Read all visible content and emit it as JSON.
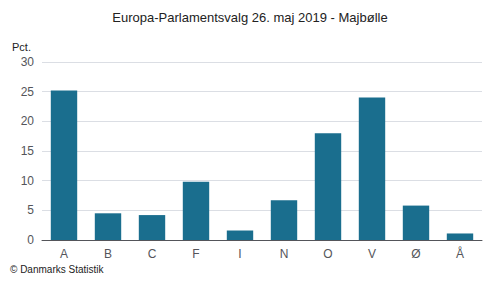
{
  "chart_data": {
    "type": "bar",
    "title": "Europa-Parlamentsvalg 26. maj 2019 - Majbølle",
    "categories": [
      "A",
      "B",
      "C",
      "F",
      "I",
      "N",
      "O",
      "V",
      "Ø",
      "Å"
    ],
    "values": [
      25.2,
      4.5,
      4.2,
      9.8,
      1.6,
      6.7,
      18.0,
      24.0,
      5.8,
      1.1
    ],
    "color": "#1a6e8e",
    "ylabel": "Pct.",
    "ylim": [
      0,
      30
    ],
    "yticks": [
      0,
      5,
      10,
      15,
      20,
      25,
      30
    ],
    "grid": true,
    "footer": "© Danmarks Statistik"
  }
}
